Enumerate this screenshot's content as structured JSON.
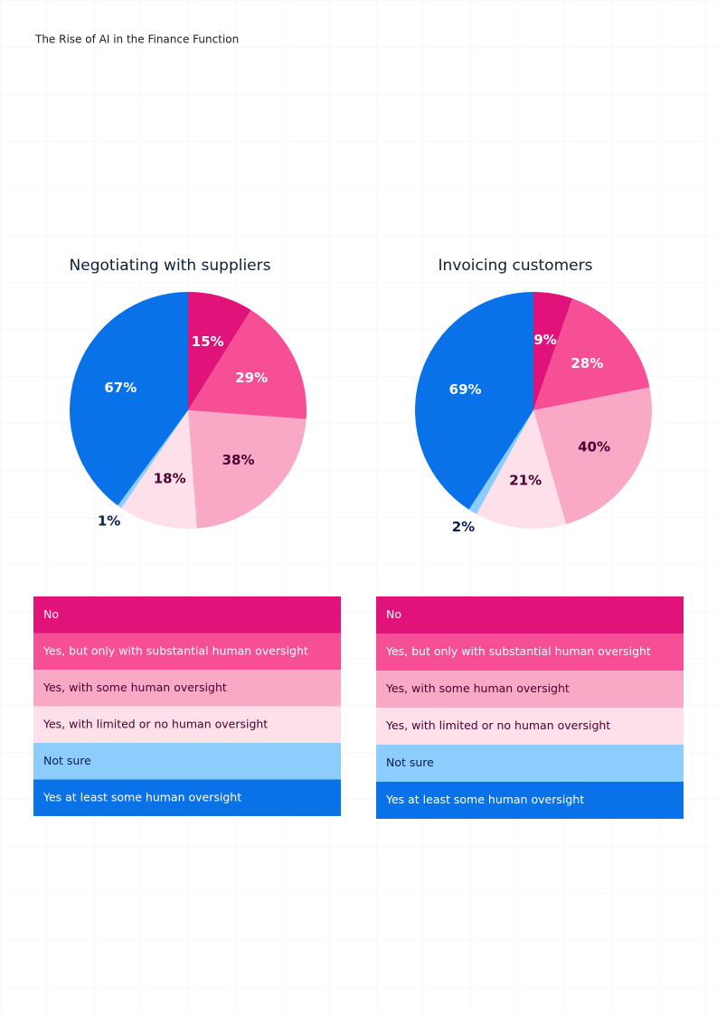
{
  "header": {
    "title": "The Rise of AI in the Finance Function"
  },
  "chart_data": [
    {
      "type": "pie",
      "title": "Negotiating with suppliers",
      "categories": [
        "No",
        "Yes, but only with substantial human oversight",
        "Yes, with some human oversight",
        "Yes, with limited or no human oversight",
        "Not sure",
        "Yes at least some human oversight"
      ],
      "values": [
        15,
        29,
        38,
        18,
        1,
        67
      ],
      "value_labels": [
        "15%",
        "29%",
        "38%",
        "18%",
        "1%",
        "67%"
      ],
      "colors": [
        "#e0137a",
        "#f74f95",
        "#f9a8c6",
        "#fde0ea",
        "#8ccdfd",
        "#0a72e8"
      ]
    },
    {
      "type": "pie",
      "title": "Invoicing customers",
      "categories": [
        "No",
        "Yes, but only with substantial human oversight",
        "Yes, with some human oversight",
        "Yes, with limited or no human oversight",
        "Not sure",
        "Yes at least some human oversight"
      ],
      "values": [
        9,
        28,
        40,
        21,
        2,
        69
      ],
      "value_labels": [
        "9%",
        "28%",
        "40%",
        "21%",
        "2%",
        "69%"
      ],
      "colors": [
        "#e0137a",
        "#f74f95",
        "#f9a8c6",
        "#fde0ea",
        "#8ccdfd",
        "#0a72e8"
      ]
    }
  ]
}
